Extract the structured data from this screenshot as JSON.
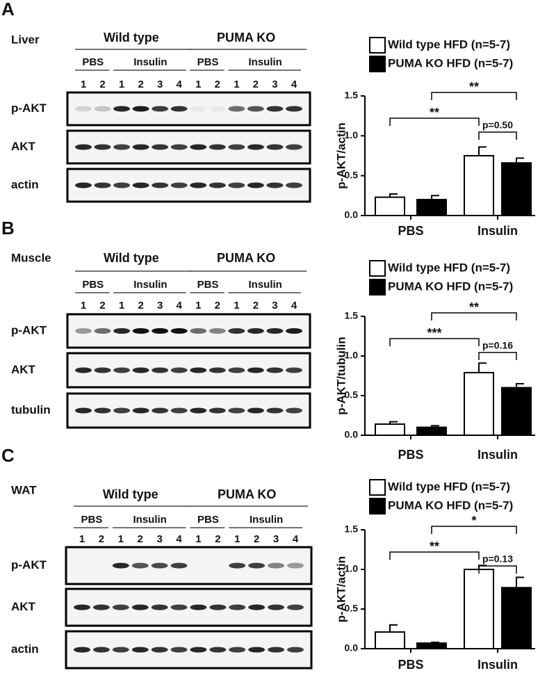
{
  "panel_labels": [
    "A",
    "B",
    "C"
  ],
  "blots": [
    {
      "tissue": "Liver",
      "groups": [
        "Wild type",
        "PUMA KO"
      ],
      "treatments": [
        "PBS",
        "Insulin",
        "PBS",
        "Insulin"
      ],
      "lanes": [
        1,
        2,
        1,
        2,
        3,
        4,
        1,
        2,
        1,
        2,
        3,
        4
      ],
      "rows": [
        "p-AKT",
        "AKT",
        "actin"
      ]
    },
    {
      "tissue": "Muscle",
      "groups": [
        "Wild type",
        "PUMA KO"
      ],
      "treatments": [
        "PBS",
        "Insulin",
        "PBS",
        "Insulin"
      ],
      "lanes": [
        1,
        2,
        1,
        2,
        3,
        4,
        1,
        2,
        1,
        2,
        3,
        4
      ],
      "rows": [
        "p-AKT",
        "AKT",
        "tubulin"
      ]
    },
    {
      "tissue": "WAT",
      "groups": [
        "Wild type",
        "PUMA KO"
      ],
      "treatments": [
        "PBS",
        "Insulin",
        "PBS",
        "Insulin"
      ],
      "lanes": [
        1,
        2,
        1,
        2,
        3,
        4,
        1,
        2,
        1,
        2,
        3,
        4
      ],
      "rows": [
        "p-AKT",
        "AKT",
        "actin"
      ]
    }
  ],
  "chart_data": [
    {
      "type": "bar",
      "y_label": "p-AKT/actin",
      "categories": [
        "PBS",
        "Insulin"
      ],
      "series": [
        {
          "name": "Wild type HFD (n=5-7)",
          "color": "#ffffff",
          "values": [
            0.23,
            0.75
          ],
          "errors": [
            0.04,
            0.11
          ]
        },
        {
          "name": "PUMA KO HFD (n=5-7)",
          "color": "#000000",
          "values": [
            0.2,
            0.66
          ],
          "errors": [
            0.05,
            0.06
          ]
        }
      ],
      "ylim": [
        0,
        1.5
      ],
      "yticks": [
        {
          "value": 0,
          "label": "0.0"
        },
        {
          "value": 0.5,
          "label": "0.5"
        },
        {
          "value": 1,
          "label": "1.0"
        },
        {
          "value": 1.5,
          "label": "1.5"
        }
      ],
      "annotations": [
        "**",
        "**",
        "p=0.50"
      ]
    },
    {
      "type": "bar",
      "y_label": "p-AKT/tubulin",
      "categories": [
        "PBS",
        "Insulin"
      ],
      "series": [
        {
          "name": "Wild type HFD (n=5-7)",
          "color": "#ffffff",
          "values": [
            0.14,
            0.79
          ],
          "errors": [
            0.03,
            0.12
          ]
        },
        {
          "name": "PUMA KO HFD (n=5-7)",
          "color": "#000000",
          "values": [
            0.1,
            0.6
          ],
          "errors": [
            0.02,
            0.05
          ]
        }
      ],
      "ylim": [
        0,
        1.5
      ],
      "yticks": [
        {
          "value": 0,
          "label": "0.0"
        },
        {
          "value": 0.5,
          "label": "0.5"
        },
        {
          "value": 1,
          "label": "1.0"
        },
        {
          "value": 1.5,
          "label": "1.5"
        }
      ],
      "annotations": [
        "**",
        "***",
        "p=0.16"
      ]
    },
    {
      "type": "bar",
      "y_label": "p-AKT/actin",
      "categories": [
        "PBS",
        "Insulin"
      ],
      "series": [
        {
          "name": "Wild type HFD (n=5-7)",
          "color": "#ffffff",
          "values": [
            0.21,
            1.0
          ],
          "errors": [
            0.09,
            0.05
          ]
        },
        {
          "name": "PUMA KO HFD (n=5-7)",
          "color": "#000000",
          "values": [
            0.07,
            0.77
          ],
          "errors": [
            0.01,
            0.13
          ]
        }
      ],
      "ylim": [
        0,
        1.5
      ],
      "yticks": [
        {
          "value": 0,
          "label": "0.0"
        },
        {
          "value": 0.5,
          "label": "0.5"
        },
        {
          "value": 1,
          "label": "1.0"
        },
        {
          "value": 1.5,
          "label": "1.5"
        }
      ],
      "annotations": [
        "*",
        "**",
        "p=0.13"
      ]
    }
  ]
}
